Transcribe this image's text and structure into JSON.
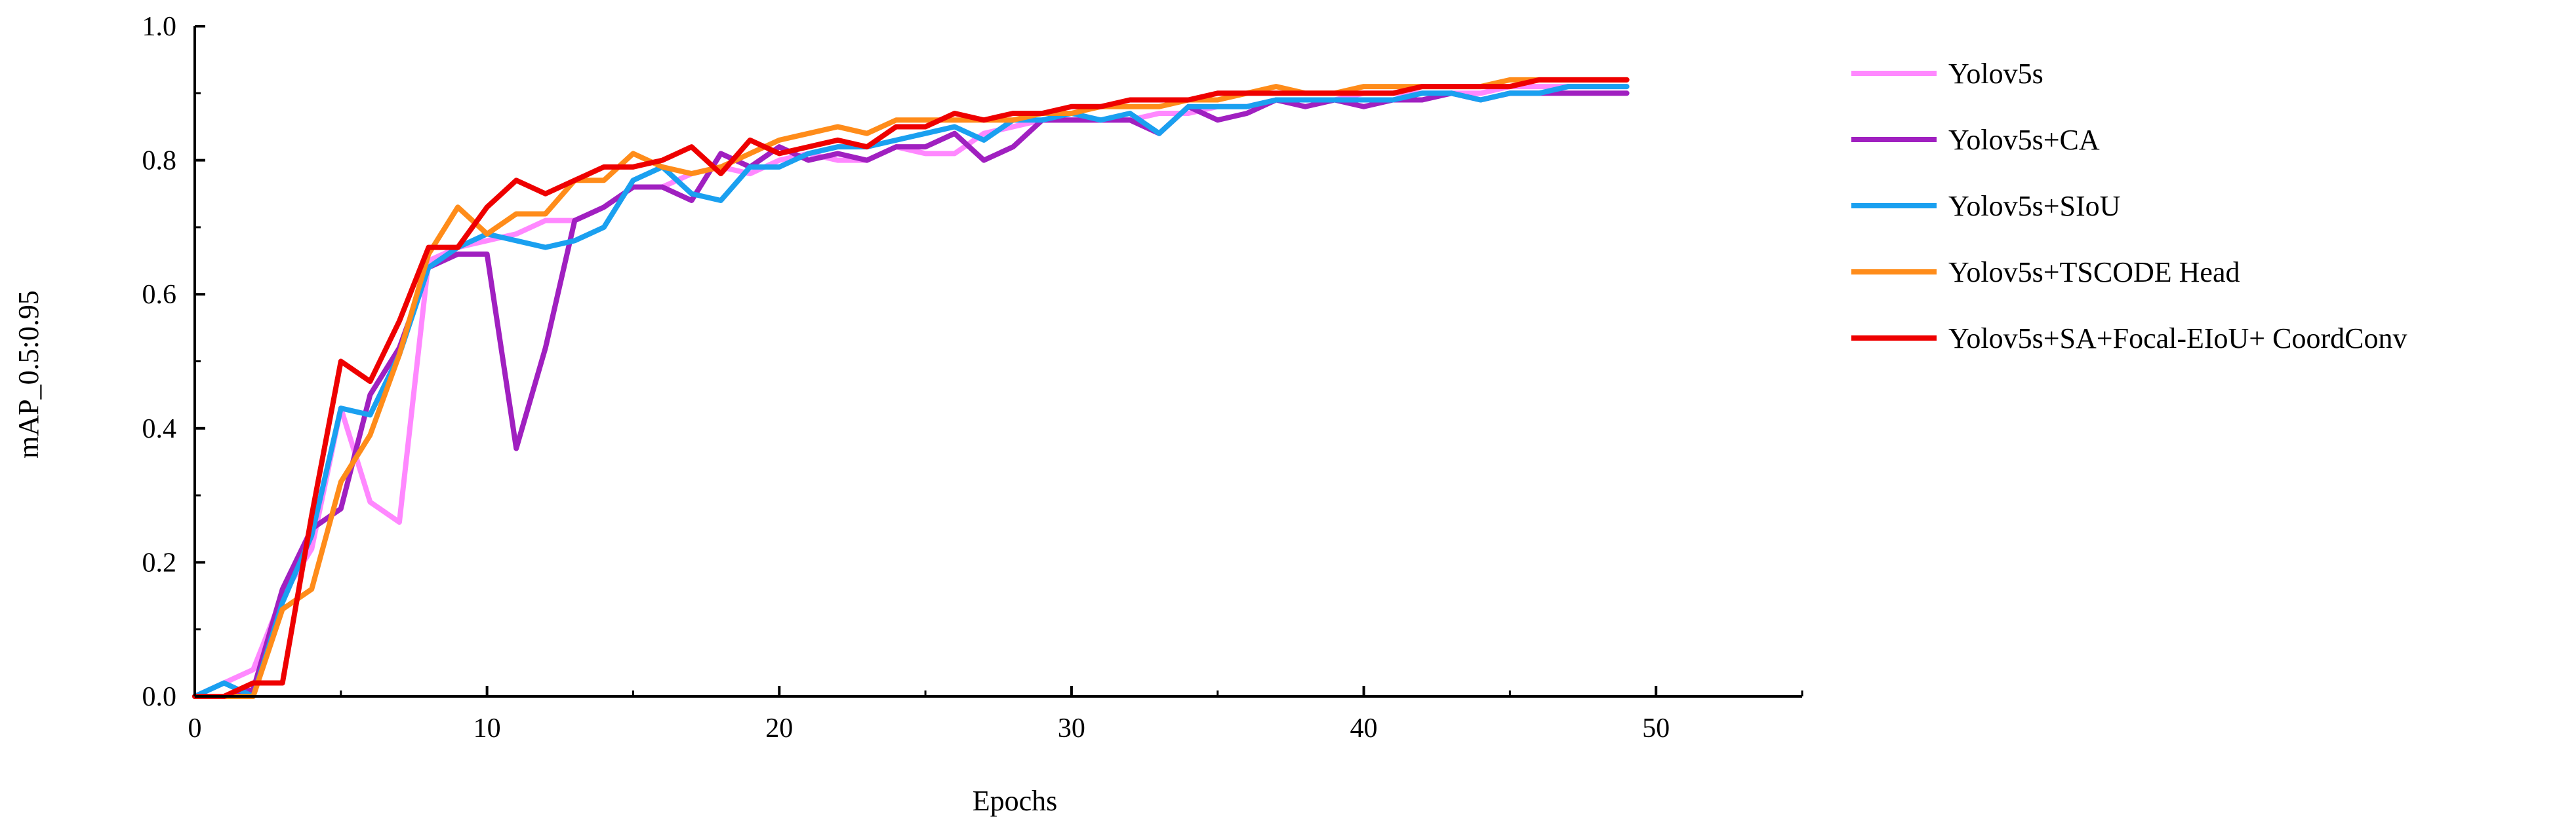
{
  "chart_data": {
    "type": "line",
    "title": "",
    "xlabel": "Epochs",
    "ylabel": "mAP_0.5:0.95",
    "xlim": [
      0,
      55
    ],
    "ylim": [
      0,
      1.0
    ],
    "x_ticks": [
      0,
      10,
      20,
      30,
      40,
      50
    ],
    "x_tick_labels": [
      "0",
      "10",
      "20",
      "30",
      "40",
      "50"
    ],
    "y_ticks": [
      0,
      0.2,
      0.4,
      0.6,
      0.8,
      1.0
    ],
    "y_tick_labels": [
      "0.0",
      "0.2",
      "0.4",
      "0.6",
      "0.8",
      "1.0"
    ],
    "grid": false,
    "legend_position": "top-right, outside plot",
    "x": [
      0,
      1,
      2,
      3,
      4,
      5,
      6,
      7,
      8,
      9,
      10,
      11,
      12,
      13,
      14,
      15,
      16,
      17,
      18,
      19,
      20,
      21,
      22,
      23,
      24,
      25,
      26,
      27,
      28,
      29,
      30,
      31,
      32,
      33,
      34,
      35,
      36,
      37,
      38,
      39,
      40,
      41,
      42,
      43,
      44,
      45,
      46,
      47,
      48,
      49
    ],
    "series": [
      {
        "name": "Yolov5s",
        "color": "#ff88ff",
        "values": [
          0.0,
          0.02,
          0.04,
          0.15,
          0.22,
          0.43,
          0.29,
          0.26,
          0.65,
          0.67,
          0.68,
          0.69,
          0.71,
          0.71,
          0.73,
          0.76,
          0.76,
          0.78,
          0.79,
          0.78,
          0.8,
          0.81,
          0.8,
          0.8,
          0.82,
          0.81,
          0.81,
          0.84,
          0.85,
          0.86,
          0.86,
          0.86,
          0.86,
          0.87,
          0.87,
          0.88,
          0.88,
          0.89,
          0.89,
          0.89,
          0.9,
          0.9,
          0.9,
          0.9,
          0.9,
          0.91,
          0.91,
          0.91,
          0.91,
          0.91
        ]
      },
      {
        "name": "Yolov5s+CA",
        "color": "#a020c0",
        "values": [
          0.0,
          0.0,
          0.01,
          0.16,
          0.25,
          0.28,
          0.45,
          0.52,
          0.64,
          0.66,
          0.66,
          0.37,
          0.52,
          0.71,
          0.73,
          0.76,
          0.76,
          0.74,
          0.81,
          0.79,
          0.82,
          0.8,
          0.81,
          0.8,
          0.82,
          0.82,
          0.84,
          0.8,
          0.82,
          0.86,
          0.86,
          0.86,
          0.86,
          0.84,
          0.88,
          0.86,
          0.87,
          0.89,
          0.88,
          0.89,
          0.88,
          0.89,
          0.89,
          0.9,
          0.89,
          0.9,
          0.9,
          0.9,
          0.9,
          0.9
        ]
      },
      {
        "name": "Yolov5s+SIoU",
        "color": "#1aa0f0",
        "values": [
          0.0,
          0.02,
          0.0,
          0.14,
          0.24,
          0.43,
          0.42,
          0.51,
          0.64,
          0.67,
          0.69,
          0.68,
          0.67,
          0.68,
          0.7,
          0.77,
          0.79,
          0.75,
          0.74,
          0.79,
          0.79,
          0.81,
          0.82,
          0.82,
          0.83,
          0.84,
          0.85,
          0.83,
          0.86,
          0.86,
          0.87,
          0.86,
          0.87,
          0.84,
          0.88,
          0.88,
          0.88,
          0.89,
          0.89,
          0.89,
          0.89,
          0.89,
          0.9,
          0.9,
          0.89,
          0.9,
          0.9,
          0.91,
          0.91,
          0.91
        ]
      },
      {
        "name": "Yolov5s+TSCODE Head",
        "color": "#ff8c1a",
        "values": [
          0.0,
          0.0,
          0.0,
          0.13,
          0.16,
          0.32,
          0.39,
          0.51,
          0.66,
          0.73,
          0.69,
          0.72,
          0.72,
          0.77,
          0.77,
          0.81,
          0.79,
          0.78,
          0.79,
          0.81,
          0.83,
          0.84,
          0.85,
          0.84,
          0.86,
          0.86,
          0.86,
          0.86,
          0.86,
          0.87,
          0.87,
          0.88,
          0.88,
          0.88,
          0.89,
          0.89,
          0.9,
          0.91,
          0.9,
          0.9,
          0.91,
          0.91,
          0.91,
          0.91,
          0.91,
          0.92,
          0.92,
          0.92,
          0.92,
          0.92
        ]
      },
      {
        "name": "Yolov5s+SA+Focal-EIoU+ CoordConv",
        "color": "#ee0000",
        "values": [
          0.0,
          0.0,
          0.02,
          0.02,
          0.27,
          0.5,
          0.47,
          0.56,
          0.67,
          0.67,
          0.73,
          0.77,
          0.75,
          0.77,
          0.79,
          0.79,
          0.8,
          0.82,
          0.78,
          0.83,
          0.81,
          0.82,
          0.83,
          0.82,
          0.85,
          0.85,
          0.87,
          0.86,
          0.87,
          0.87,
          0.88,
          0.88,
          0.89,
          0.89,
          0.89,
          0.9,
          0.9,
          0.9,
          0.9,
          0.9,
          0.9,
          0.9,
          0.91,
          0.91,
          0.91,
          0.91,
          0.92,
          0.92,
          0.92,
          0.92
        ]
      }
    ]
  }
}
